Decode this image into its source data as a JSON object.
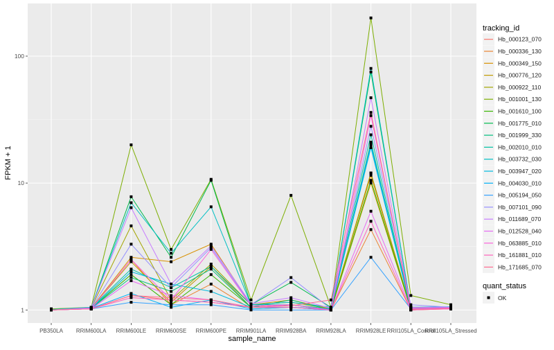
{
  "chart_data": {
    "type": "line",
    "title": "",
    "xlabel": "sample_name",
    "ylabel": "FPKM + 1",
    "yscale": "log10",
    "ylim": [
      0.79,
      260
    ],
    "yticks": [
      1,
      10,
      100
    ],
    "ytick_labels": [
      "1",
      "10",
      "100"
    ],
    "grid": true,
    "categories": [
      "PB350LA",
      "RRIM600LA",
      "RRIM600LE",
      "RRIM600SE",
      "RRIM600PE",
      "RRIM901LA",
      "RRIM928BA",
      "RRIM928LA",
      "RRIM928LE",
      "RRII105LA_Control",
      "RRII105LA_Stressed"
    ],
    "legend": {
      "position": "right",
      "color_title": "tracking_id",
      "shape_title": "quant_status",
      "shape_entries": [
        "OK"
      ]
    },
    "series": [
      {
        "name": "Hb_000123_070",
        "color": "#F8766D",
        "values": [
          1,
          1.02,
          1.3,
          1.2,
          1.15,
          1.05,
          1.1,
          1,
          12,
          1,
          1.03
        ]
      },
      {
        "name": "Hb_000336_130",
        "color": "#EA8331",
        "values": [
          1,
          1.02,
          2.5,
          1.1,
          1.6,
          1.02,
          1.05,
          1,
          4.3,
          1,
          1.02
        ]
      },
      {
        "name": "Hb_000349_150",
        "color": "#D89000",
        "values": [
          1,
          1.03,
          2.6,
          2.4,
          3.3,
          1.1,
          1.2,
          1.02,
          11.5,
          1.02,
          1.05
        ]
      },
      {
        "name": "Hb_000776_120",
        "color": "#C09B00",
        "values": [
          1,
          1.03,
          2.4,
          1.15,
          2.2,
          1.05,
          1.1,
          1,
          10,
          1.01,
          1.03
        ]
      },
      {
        "name": "Hb_000922_110",
        "color": "#A3A500",
        "values": [
          1.02,
          1.04,
          4.6,
          1.2,
          2.3,
          1.1,
          1.15,
          1.02,
          12,
          1.03,
          1.05
        ]
      },
      {
        "name": "Hb_001001_130",
        "color": "#7CAE00",
        "values": [
          1.02,
          1.05,
          20,
          3,
          10.7,
          1.2,
          8,
          1.05,
          200,
          1.3,
          1.1
        ]
      },
      {
        "name": "Hb_001610_100",
        "color": "#39B600",
        "values": [
          1,
          1.03,
          1.9,
          1.1,
          1.9,
          1.05,
          1.1,
          1,
          10.5,
          1.02,
          1.04
        ]
      },
      {
        "name": "Hb_001775_010",
        "color": "#00BB4E",
        "values": [
          1,
          1.04,
          7.8,
          2.6,
          10.5,
          1.1,
          1.65,
          1.05,
          75,
          1.05,
          1.05
        ]
      },
      {
        "name": "Hb_001999_330",
        "color": "#00BF7D",
        "values": [
          1,
          1.03,
          1.8,
          1.4,
          2.1,
          1.05,
          1.2,
          1,
          21,
          1.02,
          1.03
        ]
      },
      {
        "name": "Hb_002010_010",
        "color": "#00C1A3",
        "values": [
          1,
          1.04,
          2.1,
          1.5,
          2.2,
          1.1,
          1.1,
          1.02,
          24,
          1.03,
          1.04
        ]
      },
      {
        "name": "Hb_003732_030",
        "color": "#00BFC4",
        "values": [
          1.01,
          1.05,
          7,
          2.8,
          6.5,
          1.1,
          1.15,
          1.05,
          80,
          1.05,
          1.06
        ]
      },
      {
        "name": "Hb_003947_020",
        "color": "#00BAE0",
        "values": [
          1,
          1.03,
          2.0,
          1.6,
          1.4,
          1.05,
          1.05,
          1.02,
          19,
          1.02,
          1.03
        ]
      },
      {
        "name": "Hb_004030_010",
        "color": "#00B0F6",
        "values": [
          1,
          1.03,
          1.35,
          1.05,
          1.2,
          1.02,
          1.05,
          1,
          20,
          1.01,
          1.02
        ]
      },
      {
        "name": "Hb_005194_050",
        "color": "#35A2FF",
        "values": [
          1,
          1.02,
          1.15,
          1.1,
          1.1,
          1,
          1,
          1,
          2.6,
          1.02,
          1.03
        ]
      },
      {
        "name": "Hb_007101_090",
        "color": "#9590FF",
        "values": [
          1,
          1.03,
          3.3,
          1.5,
          3.1,
          1.1,
          1.8,
          1.02,
          28,
          1.1,
          1.05
        ]
      },
      {
        "name": "Hb_011689_070",
        "color": "#C77CFF",
        "values": [
          1,
          1.04,
          6.4,
          1.6,
          3.2,
          1.12,
          1.25,
          1.03,
          47,
          1.05,
          1.05
        ]
      },
      {
        "name": "Hb_012528_040",
        "color": "#E76BF3",
        "values": [
          1,
          1.02,
          1.7,
          1.3,
          1.2,
          1.05,
          1.1,
          1,
          6,
          1.02,
          1.02
        ]
      },
      {
        "name": "Hb_063885_010",
        "color": "#FA62DB",
        "values": [
          1,
          1.02,
          2.5,
          1.2,
          3.0,
          1.08,
          1.1,
          1,
          34,
          1.03,
          1.04
        ]
      },
      {
        "name": "Hb_161881_010",
        "color": "#FF62BC",
        "values": [
          1,
          1.02,
          1.25,
          1.2,
          1.15,
          1.05,
          1.05,
          1,
          5,
          1,
          1.02
        ]
      },
      {
        "name": "Hb_171685_070",
        "color": "#FF6C91",
        "values": [
          1,
          1.02,
          1.3,
          1.25,
          1.2,
          1.05,
          1.08,
          1.2,
          36,
          1.01,
          1.03
        ]
      }
    ]
  }
}
